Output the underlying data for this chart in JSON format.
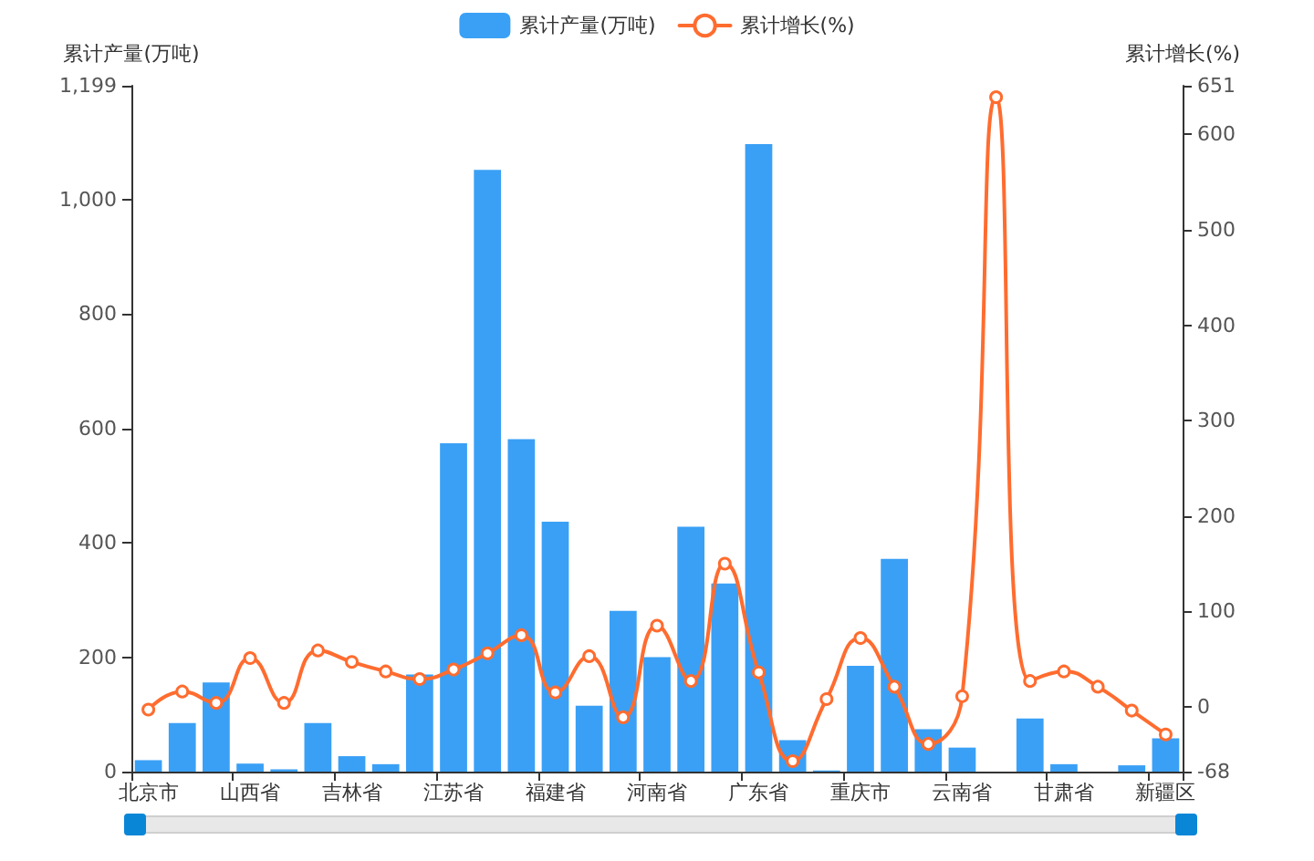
{
  "chart_data": {
    "type": "bar",
    "legend": "top",
    "grid": false,
    "marker": "circle",
    "ylabel": "累计产量(万吨)",
    "y2label": "累计增长(%)",
    "categories": [
      "北京市",
      null,
      null,
      "山西省",
      null,
      null,
      "吉林省",
      null,
      null,
      "江苏省",
      null,
      null,
      "福建省",
      null,
      null,
      "河南省",
      null,
      null,
      "广东省",
      null,
      null,
      "重庆市",
      null,
      null,
      "云南省",
      null,
      null,
      "甘肃省",
      null,
      null,
      "新疆区"
    ],
    "ylim": [
      0,
      1199
    ],
    "yticks": [
      0,
      200,
      400,
      600,
      800,
      {
        "value": 1000,
        "label": "1,000"
      },
      {
        "value": 1199,
        "label": "1,199"
      }
    ],
    "y2lim": [
      -68,
      651
    ],
    "y2ticks": [
      -68,
      0,
      100,
      200,
      300,
      400,
      500,
      600,
      651
    ],
    "series": [
      {
        "name": "累计产量(万吨)",
        "type": "bar",
        "color": "#3aa0f5",
        "values": [
          20,
          85,
          156,
          14,
          4,
          85,
          27,
          13,
          170,
          574,
          1052,
          581,
          437,
          115,
          281,
          200,
          428,
          329,
          1097,
          55,
          2,
          185,
          372,
          74,
          42,
          0,
          93,
          13,
          0,
          11,
          58
        ]
      },
      {
        "name": "累计增长(%)",
        "type": "line",
        "axis": "y2",
        "color": "#ff6c2f",
        "values": [
          -3,
          16,
          4,
          51,
          4,
          59,
          47,
          37,
          29,
          39,
          56,
          75,
          15,
          53,
          -11,
          85,
          27,
          150,
          36,
          -57,
          8,
          72,
          21,
          -39,
          11,
          639,
          27,
          37,
          21,
          -4,
          -29
        ]
      }
    ]
  }
}
